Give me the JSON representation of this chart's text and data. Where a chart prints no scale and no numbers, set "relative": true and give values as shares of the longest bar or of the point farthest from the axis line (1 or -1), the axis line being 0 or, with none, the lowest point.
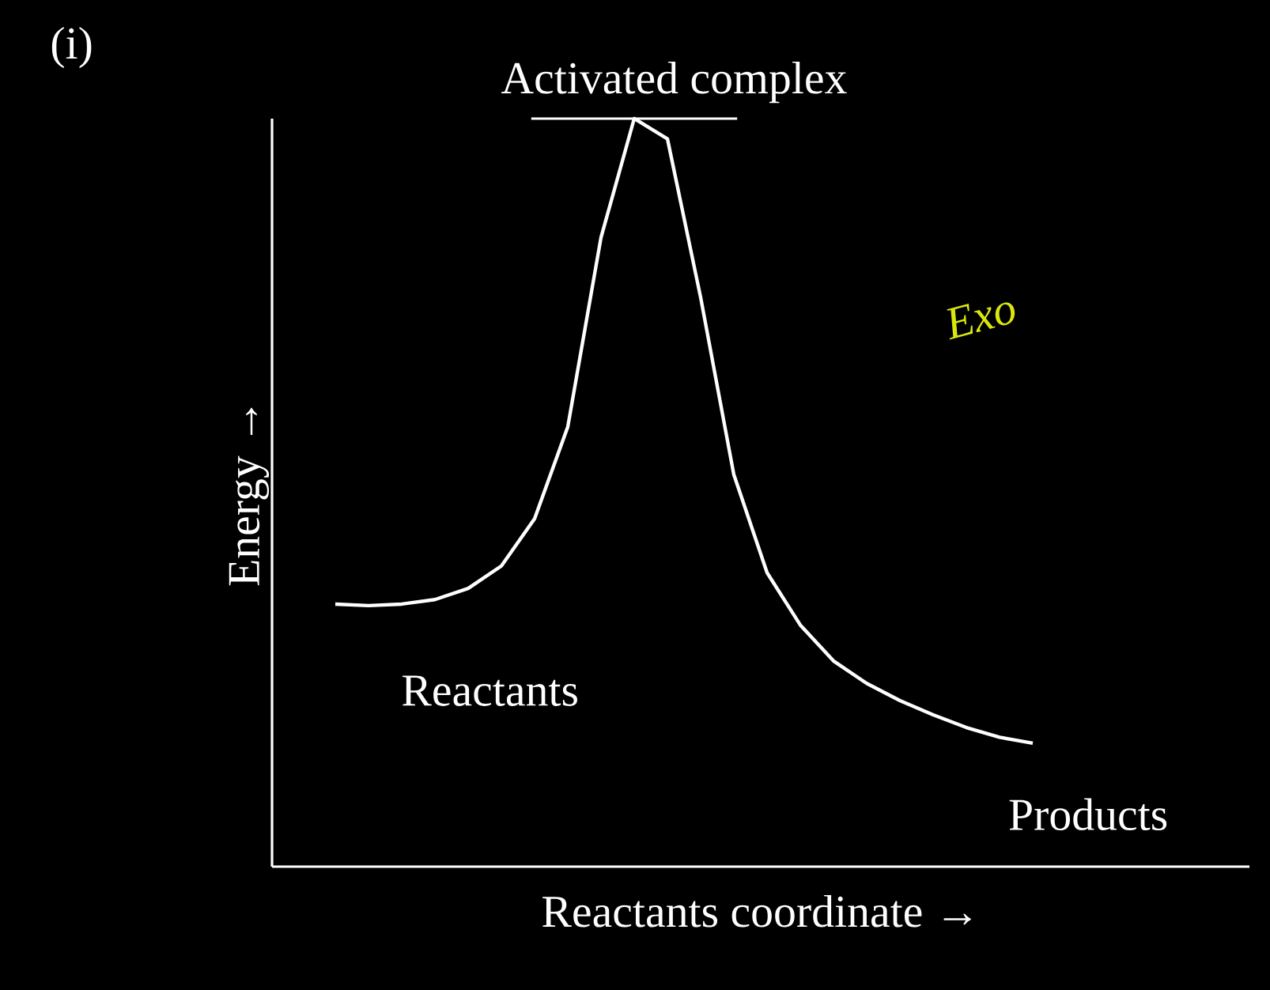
{
  "chart_data": {
    "type": "line",
    "relative": true,
    "title": "(i)",
    "xlabel": "Reactants coordinate →",
    "ylabel": "Energy →",
    "categories": [
      null,
      null,
      null,
      null,
      null,
      null,
      null,
      null,
      null,
      null,
      null,
      null,
      null,
      null,
      null,
      null,
      null,
      null,
      null,
      null,
      null,
      null
    ],
    "series": [
      {
        "color": "#ffffff",
        "values": [
          0.351,
          0.349,
          0.351,
          0.357,
          0.372,
          0.402,
          0.465,
          0.588,
          0.841,
          1.0,
          0.973,
          0.761,
          0.524,
          0.393,
          0.323,
          0.275,
          0.245,
          0.222,
          0.203,
          0.186,
          0.173,
          0.165
        ]
      }
    ],
    "annotations": [
      "Activated complex",
      "Reactants",
      "Products",
      "Exo"
    ],
    "marker": "none",
    "line_style": "solid"
  }
}
